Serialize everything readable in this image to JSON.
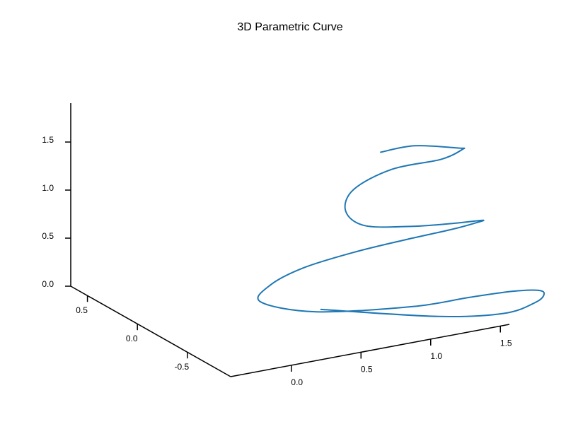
{
  "chart_data": {
    "type": "line",
    "projection": "3d",
    "title": "3D Parametric Curve",
    "curve_color": "#1f77b4",
    "grid": false,
    "xlim": [
      -0.2,
      1.6
    ],
    "ylim": [
      -0.8,
      0.8
    ],
    "zlim": [
      0,
      1.9
    ],
    "axes": {
      "x": {
        "ticks": [
          0.0,
          0.5,
          1.0,
          1.5
        ],
        "tick_labels": [
          "0.0",
          "0.5",
          "1.0",
          "1.5"
        ]
      },
      "y": {
        "ticks": [
          -0.5,
          0.0,
          0.5
        ],
        "tick_labels": [
          "-0.5",
          "0.0",
          "0.5"
        ]
      },
      "z": {
        "ticks": [
          0.0,
          0.5,
          1.0,
          1.5
        ],
        "tick_labels": [
          "0.0",
          "0.5",
          "1.0",
          "1.5"
        ]
      }
    },
    "series": [
      {
        "curve": "helix",
        "x": [
          0.58,
          1.1,
          1.39,
          1.51,
          1.5,
          1.38,
          1.14,
          0.8,
          0.38,
          -0.1,
          -0.14,
          0.11,
          0.4,
          0.72,
          1.0,
          1.2,
          1.27,
          1.2,
          0.94,
          0.66,
          0.48,
          0.47,
          0.6,
          0.86,
          1.12,
          1.2,
          1.1,
          0.82,
          0.55
        ],
        "y": [
          0.5,
          0.05,
          -0.2,
          -0.35,
          -0.45,
          -0.55,
          -0.63,
          -0.68,
          -0.7,
          -0.4,
          0.1,
          0.35,
          0.42,
          0.36,
          0.22,
          0.05,
          -0.1,
          -0.25,
          -0.35,
          -0.31,
          -0.08,
          0.1,
          0.2,
          0.18,
          0.05,
          -0.05,
          -0.15,
          -0.1,
          -0.14
        ],
        "z": [
          0.13,
          0.18,
          0.28,
          0.45,
          0.6,
          0.73,
          0.83,
          0.89,
          0.92,
          0.82,
          0.64,
          0.6,
          0.66,
          0.77,
          0.91,
          1.06,
          1.2,
          1.33,
          1.43,
          1.45,
          1.37,
          1.42,
          1.55,
          1.7,
          1.81,
          1.95,
          2.05,
          2.12,
          2.15
        ]
      }
    ]
  }
}
